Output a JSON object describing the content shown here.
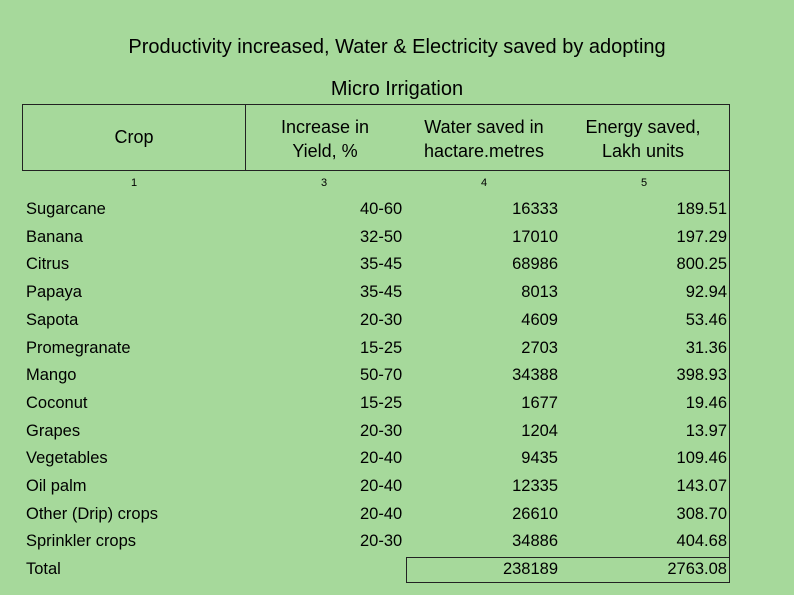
{
  "title": {
    "line1": "Productivity increased, Water & Electricity saved by adopting",
    "line2": "Micro Irrigation"
  },
  "table": {
    "headers": {
      "crop": "Crop",
      "yield_line1": "Increase in",
      "yield_line2": "Yield, %",
      "water_line1": "Water saved  in",
      "water_line2": "hactare.metres",
      "energy_line1": "Energy saved,",
      "energy_line2": "Lakh units"
    },
    "column_numbers": [
      "1",
      "3",
      "4",
      "5"
    ],
    "rows": [
      {
        "crop": "Sugarcane",
        "yield": "40-60",
        "water": "16333",
        "energy": "189.51"
      },
      {
        "crop": "Banana",
        "yield": "32-50",
        "water": "17010",
        "energy": "197.29"
      },
      {
        "crop": "Citrus",
        "yield": "35-45",
        "water": "68986",
        "energy": "800.25"
      },
      {
        "crop": "Papaya",
        "yield": "35-45",
        "water": "8013",
        "energy": "92.94"
      },
      {
        "crop": "Sapota",
        "yield": "20-30",
        "water": "4609",
        "energy": "53.46"
      },
      {
        "crop": "Promegranate",
        "yield": "15-25",
        "water": "2703",
        "energy": "31.36"
      },
      {
        "crop": "Mango",
        "yield": "50-70",
        "water": "34388",
        "energy": "398.93"
      },
      {
        "crop": "Coconut",
        "yield": "15-25",
        "water": "1677",
        "energy": "19.46"
      },
      {
        "crop": "Grapes",
        "yield": "20-30",
        "water": "1204",
        "energy": "13.97"
      },
      {
        "crop": "Vegetables",
        "yield": "20-40",
        "water": "9435",
        "energy": "109.46"
      },
      {
        "crop": "Oil palm",
        "yield": "20-40",
        "water": "12335",
        "energy": "143.07"
      },
      {
        "crop": "Other (Drip) crops",
        "yield": "20-40",
        "water": "26610",
        "energy": "308.70"
      },
      {
        "crop": "Sprinkler crops",
        "yield": "20-30",
        "water": "34886",
        "energy": "404.68"
      }
    ],
    "total": {
      "label": "Total",
      "water": "238189",
      "energy": "2763.08"
    }
  }
}
